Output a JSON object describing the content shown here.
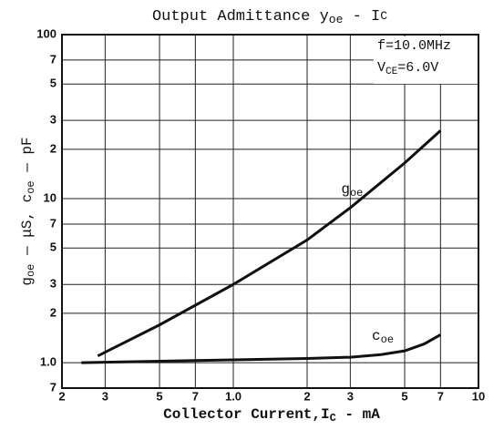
{
  "chart_data": {
    "type": "line",
    "title_parts": [
      "Output Admittance y",
      "oe",
      " - I",
      "C"
    ],
    "xlabel_parts": [
      "Collector Current,I",
      "C",
      " - mA"
    ],
    "ylabel_parts": [
      "g",
      "oe",
      " — μS, c",
      "oe",
      " — pF"
    ],
    "annotations": [
      [
        "f=10.0MHz"
      ],
      [
        "V",
        "CE",
        "=6.0V"
      ]
    ],
    "log_x": true,
    "log_y": true,
    "grid": true,
    "xlim": [
      0.2,
      10
    ],
    "ylim": [
      0.7,
      100
    ],
    "xticks": [
      {
        "value": 0.2,
        "label": "2"
      },
      {
        "value": 0.3,
        "label": "3"
      },
      {
        "value": 0.5,
        "label": "5"
      },
      {
        "value": 0.7,
        "label": "7"
      },
      {
        "value": 1,
        "label": "1.0"
      },
      2,
      3,
      5,
      7,
      10
    ],
    "yticks": [
      {
        "value": 0.7,
        "label": "7"
      },
      {
        "value": 1,
        "label": "1.0"
      },
      2,
      3,
      5,
      7,
      10,
      {
        "value": 20,
        "label": "2"
      },
      {
        "value": 30,
        "label": "3"
      },
      {
        "value": 50,
        "label": "5"
      },
      {
        "value": 70,
        "label": "7"
      },
      100
    ],
    "series": [
      {
        "label": [
          "g",
          "oe"
        ],
        "color": "#111111",
        "x": [
          0.28,
          0.5,
          1,
          2,
          3,
          5,
          7
        ],
        "values": [
          1.1,
          1.7,
          3.0,
          5.6,
          8.8,
          16.5,
          26
        ]
      },
      {
        "label": [
          "c",
          "oe"
        ],
        "color": "#111111",
        "x": [
          0.24,
          0.5,
          1,
          2,
          3,
          4,
          5,
          6,
          7
        ],
        "values": [
          1.0,
          1.02,
          1.04,
          1.06,
          1.08,
          1.12,
          1.18,
          1.3,
          1.48
        ]
      }
    ]
  }
}
